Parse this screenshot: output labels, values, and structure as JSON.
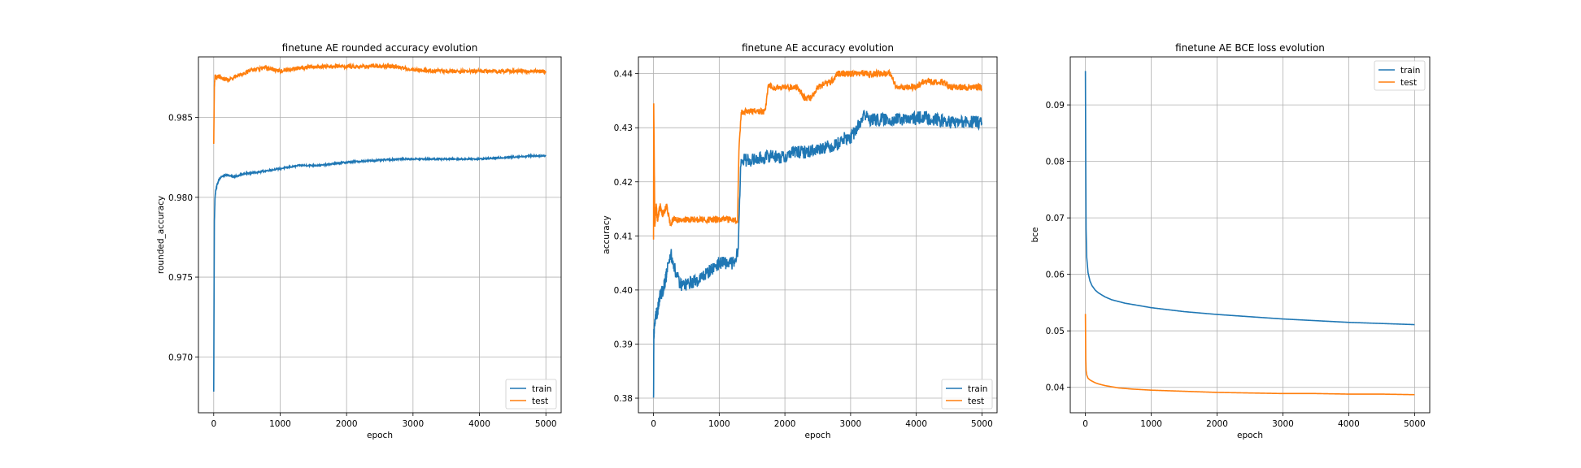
{
  "chart_data": [
    {
      "type": "line",
      "title": "finetune AE rounded accuracy evolution",
      "xlabel": "epoch",
      "ylabel": "rounded_accuracy",
      "xlim": [
        -230,
        5230
      ],
      "ylim": [
        0.9665,
        0.9888
      ],
      "xticks": [
        0,
        1000,
        2000,
        3000,
        4000,
        5000
      ],
      "yticks": [
        0.97,
        0.975,
        0.98,
        0.985
      ],
      "ytick_labels": [
        "0.970",
        "0.975",
        "0.980",
        "0.985"
      ],
      "grid": true,
      "legend": "lower-right",
      "series": [
        {
          "name": "train",
          "color": "#1f77b4",
          "noise": 5e-05,
          "x": [
            0,
            5,
            10,
            20,
            30,
            50,
            80,
            120,
            200,
            300,
            500,
            700,
            1000,
            1300,
            1600,
            2000,
            2400,
            2800,
            3200,
            3600,
            4000,
            4400,
            4800,
            5000
          ],
          "y": [
            0.9678,
            0.9735,
            0.9785,
            0.98,
            0.9804,
            0.9808,
            0.9811,
            0.9813,
            0.9814,
            0.9813,
            0.9815,
            0.9816,
            0.9818,
            0.982,
            0.982,
            0.9822,
            0.9823,
            0.9824,
            0.9824,
            0.9824,
            0.9824,
            0.9825,
            0.9826,
            0.9826
          ]
        },
        {
          "name": "test",
          "color": "#ff7f0e",
          "noise": 0.00012,
          "x": [
            0,
            10,
            20,
            40,
            80,
            150,
            250,
            400,
            600,
            800,
            1000,
            1300,
            1600,
            2000,
            2400,
            2700,
            3000,
            3500,
            4000,
            4500,
            5000
          ],
          "y": [
            0.9833,
            0.987,
            0.9876,
            0.9875,
            0.9876,
            0.9874,
            0.9874,
            0.9877,
            0.988,
            0.9881,
            0.9879,
            0.9881,
            0.9882,
            0.9882,
            0.9882,
            0.9882,
            0.988,
            0.9879,
            0.9879,
            0.9879,
            0.9879
          ]
        }
      ]
    },
    {
      "type": "line",
      "title": "finetune AE accuracy evolution",
      "xlabel": "epoch",
      "ylabel": "accuracy",
      "xlim": [
        -230,
        5230
      ],
      "ylim": [
        0.3773,
        0.4431
      ],
      "xticks": [
        0,
        1000,
        2000,
        3000,
        4000,
        5000
      ],
      "yticks": [
        0.38,
        0.39,
        0.4,
        0.41,
        0.42,
        0.43,
        0.44
      ],
      "ytick_labels": [
        "0.38",
        "0.39",
        "0.40",
        "0.41",
        "0.42",
        "0.43",
        "0.44"
      ],
      "grid": true,
      "legend": "lower-right",
      "series": [
        {
          "name": "train",
          "color": "#1f77b4",
          "noise": 0.0012,
          "x": [
            0,
            5,
            15,
            30,
            60,
            100,
            150,
            200,
            260,
            320,
            400,
            500,
            700,
            900,
            1000,
            1150,
            1250,
            1290,
            1300,
            1330,
            1500,
            1700,
            1800,
            1900,
            2000,
            2100,
            2300,
            2500,
            2600,
            2700,
            2800,
            2900,
            3000,
            3100,
            3150,
            3200,
            3300,
            3500,
            3700,
            3900,
            4100,
            4300,
            4500,
            4700,
            5000
          ],
          "y": [
            0.3795,
            0.392,
            0.393,
            0.395,
            0.396,
            0.399,
            0.4,
            0.403,
            0.407,
            0.404,
            0.401,
            0.401,
            0.402,
            0.404,
            0.405,
            0.405,
            0.405,
            0.408,
            0.412,
            0.424,
            0.424,
            0.4245,
            0.425,
            0.4245,
            0.4245,
            0.4255,
            0.4255,
            0.426,
            0.4265,
            0.4265,
            0.427,
            0.428,
            0.428,
            0.43,
            0.431,
            0.4325,
            0.4315,
            0.4315,
            0.4315,
            0.4315,
            0.432,
            0.4315,
            0.431,
            0.431,
            0.431
          ]
        },
        {
          "name": "test",
          "color": "#ff7f0e",
          "noise": 0.0006,
          "x": [
            0,
            3,
            20,
            40,
            60,
            100,
            140,
            200,
            260,
            300,
            600,
            1000,
            1280,
            1300,
            1320,
            1340,
            1500,
            1700,
            1750,
            1800,
            2000,
            2200,
            2300,
            2400,
            2500,
            2700,
            2800,
            3000,
            3200,
            3600,
            3700,
            4000,
            4100,
            4300,
            4400,
            4500,
            5000
          ],
          "y": [
            0.409,
            0.435,
            0.412,
            0.4155,
            0.413,
            0.4155,
            0.414,
            0.4155,
            0.412,
            0.413,
            0.413,
            0.413,
            0.413,
            0.426,
            0.43,
            0.433,
            0.433,
            0.433,
            0.438,
            0.4375,
            0.4375,
            0.4375,
            0.4355,
            0.4355,
            0.4375,
            0.4385,
            0.44,
            0.44,
            0.44,
            0.44,
            0.4375,
            0.4375,
            0.4385,
            0.4385,
            0.4385,
            0.4375,
            0.4375
          ]
        }
      ]
    },
    {
      "type": "line",
      "title": "finetune AE BCE loss evolution",
      "xlabel": "epoch",
      "ylabel": "bce",
      "xlim": [
        -230,
        5230
      ],
      "ylim": [
        0.0355,
        0.0985
      ],
      "xticks": [
        0,
        1000,
        2000,
        3000,
        4000,
        5000
      ],
      "yticks": [
        0.04,
        0.05,
        0.06,
        0.07,
        0.08,
        0.09
      ],
      "ytick_labels": [
        "0.04",
        "0.05",
        "0.06",
        "0.07",
        "0.08",
        "0.09"
      ],
      "grid": true,
      "legend": "upper-right",
      "series": [
        {
          "name": "train",
          "color": "#1f77b4",
          "noise": 0,
          "x": [
            0,
            5,
            10,
            20,
            40,
            70,
            100,
            150,
            200,
            300,
            400,
            600,
            800,
            1000,
            1500,
            2000,
            2500,
            3000,
            3500,
            4000,
            4500,
            5000
          ],
          "y": [
            0.096,
            0.08,
            0.068,
            0.063,
            0.0603,
            0.0588,
            0.058,
            0.0572,
            0.0567,
            0.056,
            0.0555,
            0.0549,
            0.0545,
            0.0541,
            0.0534,
            0.0529,
            0.0525,
            0.0521,
            0.0518,
            0.0515,
            0.0513,
            0.0511
          ]
        },
        {
          "name": "test",
          "color": "#ff7f0e",
          "noise": 0,
          "x": [
            0,
            5,
            10,
            20,
            40,
            70,
            100,
            150,
            200,
            300,
            500,
            700,
            1000,
            1500,
            2000,
            2500,
            3000,
            3500,
            4000,
            4500,
            5000
          ],
          "y": [
            0.053,
            0.045,
            0.043,
            0.0422,
            0.0416,
            0.0413,
            0.0411,
            0.0408,
            0.0406,
            0.0403,
            0.0399,
            0.0397,
            0.0395,
            0.0393,
            0.0391,
            0.039,
            0.0389,
            0.0389,
            0.0388,
            0.0388,
            0.0387
          ]
        }
      ]
    }
  ]
}
